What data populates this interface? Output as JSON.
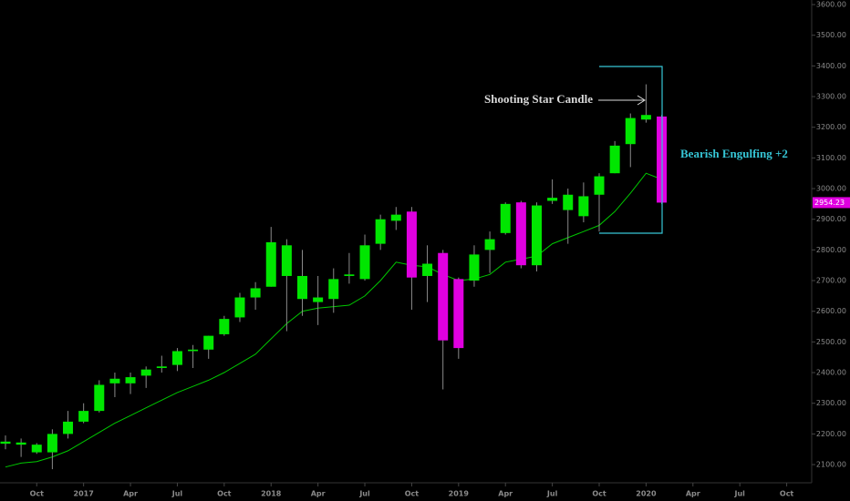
{
  "chart_data": {
    "type": "candlestick",
    "x": [
      0,
      1,
      2,
      3,
      4,
      5,
      6,
      7,
      8,
      9,
      10,
      11,
      12,
      13,
      14,
      15,
      16,
      17,
      18,
      19,
      20,
      21,
      22,
      23,
      24,
      25,
      26,
      27,
      28,
      29,
      30,
      31,
      32,
      33,
      34,
      35,
      36,
      37,
      38,
      39,
      40,
      41,
      42
    ],
    "open": [
      2168,
      2165,
      2140,
      2140,
      2200,
      2240,
      2275,
      2365,
      2365,
      2390,
      2415,
      2425,
      2470,
      2475,
      2525,
      2580,
      2645,
      2680,
      2715,
      2640,
      2630,
      2640,
      2715,
      2705,
      2820,
      2895,
      2925,
      2715,
      2790,
      2705,
      2700,
      2800,
      2855,
      2955,
      2750,
      2960,
      2930,
      2910,
      2980,
      3050,
      3145,
      3225,
      3235
    ],
    "high": [
      2195,
      2185,
      2170,
      2215,
      2275,
      2300,
      2375,
      2400,
      2400,
      2420,
      2455,
      2480,
      2490,
      2520,
      2585,
      2660,
      2695,
      2875,
      2835,
      2800,
      2715,
      2740,
      2790,
      2850,
      2915,
      2940,
      2940,
      2815,
      2800,
      2710,
      2815,
      2860,
      2955,
      2960,
      2955,
      3030,
      3000,
      3020,
      3050,
      3155,
      3245,
      3340,
      3240
    ],
    "low": [
      2150,
      2125,
      2135,
      2085,
      2185,
      2235,
      2270,
      2320,
      2330,
      2350,
      2400,
      2405,
      2415,
      2445,
      2520,
      2565,
      2605,
      2680,
      2535,
      2585,
      2555,
      2595,
      2690,
      2700,
      2800,
      2865,
      2605,
      2630,
      2345,
      2445,
      2680,
      2725,
      2850,
      2740,
      2730,
      2950,
      2820,
      2890,
      2860,
      3050,
      3070,
      3215,
      2950
    ],
    "close": [
      2175,
      2172,
      2165,
      2200,
      2240,
      2275,
      2360,
      2380,
      2385,
      2410,
      2420,
      2470,
      2475,
      2520,
      2575,
      2645,
      2675,
      2825,
      2815,
      2715,
      2645,
      2705,
      2720,
      2815,
      2900,
      2915,
      2710,
      2755,
      2505,
      2480,
      2785,
      2835,
      2950,
      2750,
      2945,
      2970,
      2980,
      2975,
      3040,
      3140,
      3230,
      3240,
      2954.23
    ],
    "up_color": "#00e600",
    "down_color": "#e000e0",
    "ma": {
      "color": "#00c800",
      "values": [
        2092,
        2105,
        2110,
        2125,
        2145,
        2175,
        2205,
        2235,
        2260,
        2285,
        2310,
        2335,
        2355,
        2375,
        2400,
        2430,
        2460,
        2510,
        2560,
        2600,
        2610,
        2615,
        2620,
        2650,
        2700,
        2760,
        2750,
        2745,
        2720,
        2700,
        2705,
        2720,
        2760,
        2770,
        2780,
        2820,
        2840,
        2860,
        2880,
        2925,
        2985,
        3050,
        3030
      ]
    },
    "xlim": [
      -0.35,
      51.6
    ],
    "ylim": [
      2040.7,
      3614.9
    ],
    "xticks": [
      {
        "value": 2,
        "label": "Oct"
      },
      {
        "value": 5,
        "label": "2017"
      },
      {
        "value": 8,
        "label": "Apr"
      },
      {
        "value": 11,
        "label": "Jul"
      },
      {
        "value": 14,
        "label": "Oct"
      },
      {
        "value": 17,
        "label": "2018"
      },
      {
        "value": 20,
        "label": "Apr"
      },
      {
        "value": 23,
        "label": "Jul"
      },
      {
        "value": 26,
        "label": "Oct"
      },
      {
        "value": 29,
        "label": "2019"
      },
      {
        "value": 32,
        "label": "Apr"
      },
      {
        "value": 35,
        "label": "Jul"
      },
      {
        "value": 38,
        "label": "Oct"
      },
      {
        "value": 41,
        "label": "2020"
      },
      {
        "value": 44,
        "label": "Apr"
      },
      {
        "value": 47,
        "label": "Jul"
      },
      {
        "value": 50,
        "label": "Oct"
      }
    ],
    "yticks": [
      {
        "value": 2100,
        "label": "2100.00"
      },
      {
        "value": 2200,
        "label": "2200.00"
      },
      {
        "value": 2300,
        "label": "2300.00"
      },
      {
        "value": 2400,
        "label": "2400.00"
      },
      {
        "value": 2500,
        "label": "2500.00"
      },
      {
        "value": 2600,
        "label": "2600.00"
      },
      {
        "value": 2700,
        "label": "2700.00"
      },
      {
        "value": 2800,
        "label": "2800.00"
      },
      {
        "value": 2900,
        "label": "2900.00"
      },
      {
        "value": 3000,
        "label": "3000.00"
      },
      {
        "value": 3100,
        "label": "3100.00"
      },
      {
        "value": 3200,
        "label": "3200.00"
      },
      {
        "value": 3300,
        "label": "3300.00"
      },
      {
        "value": 3400,
        "label": "3400.00"
      },
      {
        "value": 3500,
        "label": "3500.00"
      },
      {
        "value": 3600,
        "label": "3600.00"
      }
    ],
    "annotations": [
      "Shooting Star Candle",
      "Bearish Engulfing +2"
    ]
  }
}
